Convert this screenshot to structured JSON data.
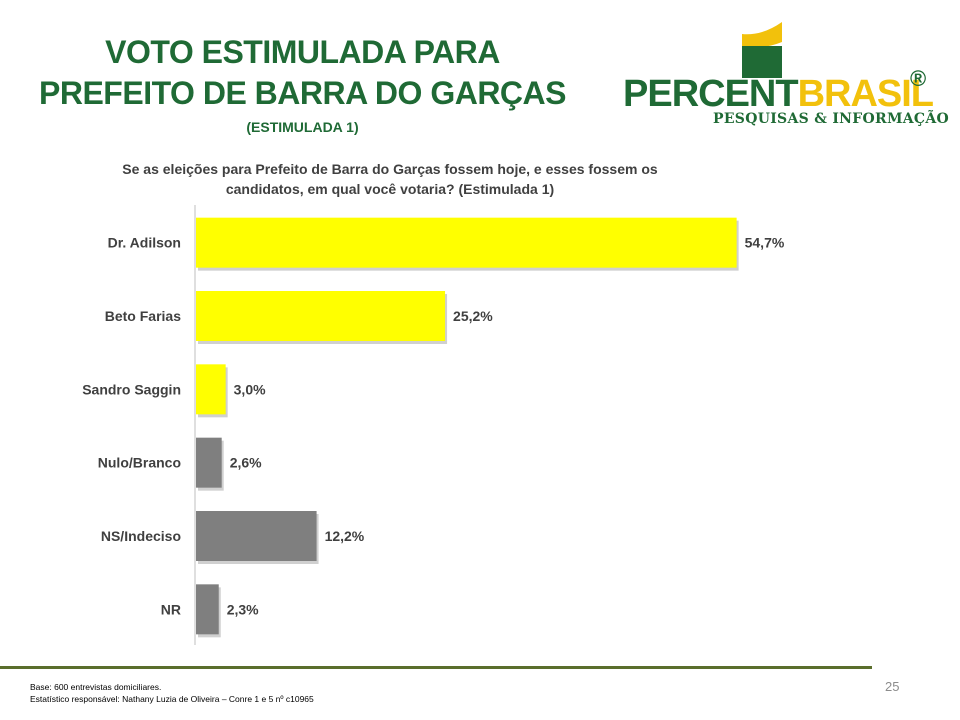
{
  "header": {
    "title_line1": "VOTO ESTIMULADA PARA",
    "title_line2": "PREFEITO DE BARRA DO GARÇAS",
    "subtitle": "(ESTIMULADA 1)"
  },
  "logo": {
    "word_part1": "PERCENT",
    "word_part2": "BRASIL",
    "registered": "®",
    "tagline": "PESQUISAS & INFORMAÇÃO",
    "colors": {
      "green": "#1f6a35",
      "yellow": "#f2c10c"
    }
  },
  "question": {
    "line1": "Se as eleições para Prefeito de Barra do Garças fossem hoje, e esses fossem os",
    "line2": "candidatos, em qual você votaria? (Estimulada 1)"
  },
  "chart_data": {
    "type": "bar",
    "orientation": "horizontal",
    "categories": [
      "Dr. Adilson",
      "Beto Farias",
      "Sandro Saggin",
      "Nulo/Branco",
      "NS/Indeciso",
      "NR"
    ],
    "values": [
      54.7,
      25.2,
      3.0,
      2.6,
      12.2,
      2.3
    ],
    "labels": [
      "54,7%",
      "25,2%",
      "3,0%",
      "2,6%",
      "12,2%",
      "2,3%"
    ],
    "colors": [
      "#ffff00",
      "#ffff00",
      "#ffff00",
      "#7f7f7f",
      "#7f7f7f",
      "#7f7f7f"
    ],
    "xlim": [
      0,
      60
    ],
    "grid": false,
    "legend": "none"
  },
  "footer": {
    "line1": "Base: 600 entrevistas domiciliares.",
    "line2": "Estatístico responsável: Nathany Luzia de Oliveira – Conre 1 e 5 nº c10965",
    "page_number": "25"
  }
}
